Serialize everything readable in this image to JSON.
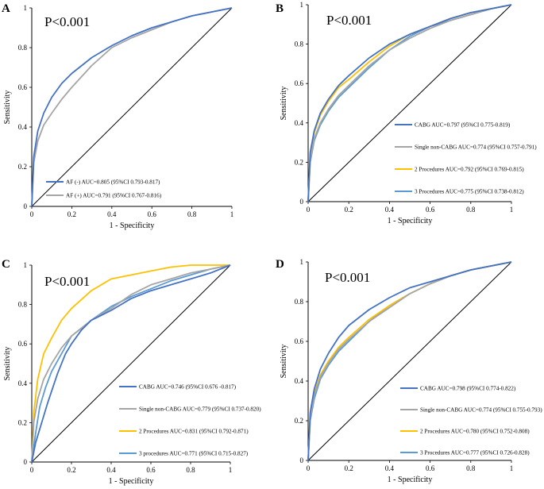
{
  "colors": {
    "blue_dark": "#4472C4",
    "gray": "#A5A5A5",
    "yellow": "#FFC000",
    "blue_light": "#5B9BD5",
    "axis": "#000000"
  },
  "chart_data": [
    {
      "type": "line",
      "panel": "A",
      "title": "P<0.001",
      "xlabel": "1 - Specificity",
      "ylabel": "Sensitivity",
      "xlim": [
        0,
        1
      ],
      "ylim": [
        0,
        1
      ],
      "xticks": [
        "0",
        "0.2",
        "0.4",
        "0.6",
        "0.8",
        "1"
      ],
      "yticks": [
        "0",
        "0.2",
        "0.4",
        "0.6",
        "0.8",
        "1"
      ],
      "reference_line": [
        [
          0,
          0
        ],
        [
          1,
          1
        ]
      ],
      "series": [
        {
          "name": "AF (-) AUC=0.805 (95%CI 0.793-0.817)",
          "color": "#4472C4",
          "x": [
            0,
            0.01,
            0.03,
            0.06,
            0.1,
            0.15,
            0.2,
            0.3,
            0.4,
            0.5,
            0.6,
            0.7,
            0.8,
            0.9,
            1
          ],
          "y": [
            0,
            0.25,
            0.38,
            0.47,
            0.55,
            0.62,
            0.67,
            0.75,
            0.81,
            0.86,
            0.9,
            0.93,
            0.96,
            0.98,
            1
          ]
        },
        {
          "name": "AF (+) AUC=0.791 (95%CI 0.767-0.816)",
          "color": "#A5A5A5",
          "x": [
            0,
            0.01,
            0.03,
            0.06,
            0.1,
            0.15,
            0.2,
            0.3,
            0.4,
            0.5,
            0.6,
            0.7,
            0.8,
            0.9,
            1
          ],
          "y": [
            0,
            0.22,
            0.33,
            0.41,
            0.47,
            0.54,
            0.6,
            0.71,
            0.8,
            0.85,
            0.89,
            0.93,
            0.96,
            0.98,
            1
          ]
        }
      ]
    },
    {
      "type": "line",
      "panel": "B",
      "title": "P<0.001",
      "xlabel": "1 - Specificity",
      "ylabel": "Sensitivity",
      "xlim": [
        0,
        1
      ],
      "ylim": [
        0,
        1
      ],
      "xticks": [
        "0",
        "0.2",
        "0.4",
        "0.6",
        "0.8",
        "1"
      ],
      "yticks": [
        "0",
        "0.2",
        "0.4",
        "0.6",
        "0.8",
        "1"
      ],
      "reference_line": [
        [
          0,
          0
        ],
        [
          1,
          1
        ]
      ],
      "series": [
        {
          "name": "CABG AUC=0.797 (95%CI 0.775-0.819)",
          "color": "#4472C4",
          "x": [
            0,
            0.01,
            0.03,
            0.06,
            0.1,
            0.15,
            0.2,
            0.3,
            0.4,
            0.5,
            0.6,
            0.7,
            0.8,
            0.9,
            1
          ],
          "y": [
            0,
            0.25,
            0.36,
            0.45,
            0.52,
            0.59,
            0.64,
            0.73,
            0.8,
            0.85,
            0.89,
            0.93,
            0.96,
            0.98,
            1
          ]
        },
        {
          "name": "Single non-CABG AUC=0.774 (95%CI 0.757-0.791)",
          "color": "#A5A5A5",
          "x": [
            0,
            0.01,
            0.03,
            0.06,
            0.1,
            0.15,
            0.2,
            0.3,
            0.4,
            0.5,
            0.6,
            0.7,
            0.8,
            0.9,
            1
          ],
          "y": [
            0,
            0.21,
            0.32,
            0.4,
            0.47,
            0.54,
            0.59,
            0.69,
            0.77,
            0.83,
            0.88,
            0.92,
            0.95,
            0.98,
            1
          ]
        },
        {
          "name": "2 Procedures AUC=0.792 (95%CI 0.769-0.815)",
          "color": "#FFC000",
          "x": [
            0,
            0.01,
            0.03,
            0.06,
            0.1,
            0.15,
            0.2,
            0.3,
            0.4,
            0.5,
            0.6,
            0.7,
            0.8,
            0.9,
            1
          ],
          "y": [
            0,
            0.24,
            0.35,
            0.44,
            0.51,
            0.58,
            0.62,
            0.71,
            0.79,
            0.85,
            0.89,
            0.93,
            0.96,
            0.98,
            1
          ]
        },
        {
          "name": "3 Procedures AUC=0.775 (95%CI 0.738-0.812)",
          "color": "#5B9BD5",
          "x": [
            0,
            0.01,
            0.03,
            0.06,
            0.1,
            0.15,
            0.2,
            0.3,
            0.4,
            0.5,
            0.6,
            0.7,
            0.8,
            0.9,
            1
          ],
          "y": [
            0,
            0.2,
            0.31,
            0.39,
            0.46,
            0.53,
            0.58,
            0.68,
            0.77,
            0.84,
            0.89,
            0.92,
            0.95,
            0.98,
            1
          ]
        }
      ]
    },
    {
      "type": "line",
      "panel": "C",
      "title": "P<0.001",
      "xlabel": "1 - Specificity",
      "ylabel": "Sensitivity",
      "xlim": [
        0,
        1
      ],
      "ylim": [
        0,
        1
      ],
      "xticks": [
        "0",
        "0.2",
        "0.4",
        "0.6",
        "0.8",
        "1"
      ],
      "yticks": [
        "0",
        "0.2",
        "0.4",
        "0.6",
        "0.8",
        "1"
      ],
      "reference_line": [
        [
          0,
          0
        ],
        [
          1,
          1
        ]
      ],
      "series": [
        {
          "name": "CABG AUC=0.746 (95%CI 0.676 -0.817)",
          "color": "#4472C4",
          "x": [
            0,
            0.02,
            0.05,
            0.08,
            0.1,
            0.13,
            0.17,
            0.2,
            0.25,
            0.3,
            0.4,
            0.5,
            0.6,
            0.7,
            0.8,
            0.9,
            1
          ],
          "y": [
            0,
            0.1,
            0.2,
            0.3,
            0.36,
            0.45,
            0.55,
            0.6,
            0.67,
            0.72,
            0.77,
            0.83,
            0.87,
            0.9,
            0.93,
            0.96,
            1
          ]
        },
        {
          "name": "Single non-CABG AUC=0.779 (95%CI 0.737-0.820)",
          "color": "#A5A5A5",
          "x": [
            0,
            0.01,
            0.03,
            0.06,
            0.1,
            0.15,
            0.2,
            0.3,
            0.4,
            0.5,
            0.6,
            0.7,
            0.8,
            0.9,
            1
          ],
          "y": [
            0,
            0.2,
            0.32,
            0.42,
            0.5,
            0.58,
            0.64,
            0.72,
            0.78,
            0.85,
            0.9,
            0.93,
            0.96,
            0.98,
            1
          ]
        },
        {
          "name": "2 Procedures AUC=0.831 (95%CI 0.792-0.871)",
          "color": "#FFC000",
          "x": [
            0,
            0.01,
            0.03,
            0.06,
            0.1,
            0.15,
            0.2,
            0.3,
            0.4,
            0.5,
            0.6,
            0.7,
            0.8,
            0.9,
            1
          ],
          "y": [
            0,
            0.25,
            0.42,
            0.55,
            0.63,
            0.72,
            0.78,
            0.87,
            0.93,
            0.95,
            0.97,
            0.99,
            1,
            1,
            1
          ]
        },
        {
          "name": "3 procedures AUC=0.771 (95%CI 0.715-0.827)",
          "color": "#5B9BD5",
          "x": [
            0,
            0.02,
            0.04,
            0.07,
            0.1,
            0.15,
            0.2,
            0.3,
            0.4,
            0.5,
            0.6,
            0.7,
            0.8,
            0.9,
            1
          ],
          "y": [
            0,
            0.15,
            0.28,
            0.38,
            0.46,
            0.55,
            0.64,
            0.72,
            0.79,
            0.84,
            0.88,
            0.92,
            0.95,
            0.98,
            1
          ]
        }
      ]
    },
    {
      "type": "line",
      "panel": "D",
      "title": "P<0.001",
      "xlabel": "1 - Specificity",
      "ylabel": "Sensitivity",
      "xlim": [
        0,
        1
      ],
      "ylim": [
        0,
        1
      ],
      "xticks": [
        "0",
        "0.2",
        "0.4",
        "0.6",
        "0.8",
        "1"
      ],
      "yticks": [
        "0",
        "0.2",
        "0.4",
        "0.6",
        "0.8",
        "1"
      ],
      "reference_line": [
        [
          0,
          0
        ],
        [
          1,
          1
        ]
      ],
      "series": [
        {
          "name": "CABG AUC=0.798 (95%CI 0.774-0.822)",
          "color": "#4472C4",
          "x": [
            0,
            0.01,
            0.03,
            0.06,
            0.1,
            0.15,
            0.2,
            0.3,
            0.4,
            0.5,
            0.6,
            0.7,
            0.8,
            0.9,
            1
          ],
          "y": [
            0,
            0.24,
            0.36,
            0.46,
            0.54,
            0.62,
            0.68,
            0.76,
            0.82,
            0.87,
            0.9,
            0.93,
            0.96,
            0.98,
            1
          ]
        },
        {
          "name": "Single non-CABG AUC=0.774 (95%CI 0.755-0.793)",
          "color": "#A5A5A5",
          "x": [
            0,
            0.01,
            0.03,
            0.06,
            0.1,
            0.15,
            0.2,
            0.3,
            0.4,
            0.5,
            0.6,
            0.7,
            0.8,
            0.9,
            1
          ],
          "y": [
            0,
            0.21,
            0.33,
            0.42,
            0.49,
            0.56,
            0.61,
            0.7,
            0.77,
            0.84,
            0.89,
            0.93,
            0.96,
            0.98,
            1
          ]
        },
        {
          "name": "2 Procedures AUC=0.780 (95%CI 0.752-0.808)",
          "color": "#FFC000",
          "x": [
            0,
            0.01,
            0.03,
            0.06,
            0.1,
            0.15,
            0.2,
            0.3,
            0.4,
            0.5,
            0.6,
            0.7,
            0.8,
            0.9,
            1
          ],
          "y": [
            0,
            0.22,
            0.34,
            0.43,
            0.5,
            0.57,
            0.62,
            0.71,
            0.78,
            0.84,
            0.89,
            0.93,
            0.96,
            0.98,
            1
          ]
        },
        {
          "name": "3 Procedures AUC=0.777 (95%CI 0.726-0.828)",
          "color": "#5B9BD5",
          "x": [
            0,
            0.01,
            0.03,
            0.06,
            0.1,
            0.15,
            0.2,
            0.3,
            0.4,
            0.5,
            0.6,
            0.7,
            0.8,
            0.9,
            1
          ],
          "y": [
            0,
            0.2,
            0.31,
            0.41,
            0.48,
            0.55,
            0.6,
            0.7,
            0.78,
            0.84,
            0.89,
            0.93,
            0.96,
            0.98,
            1
          ]
        }
      ]
    }
  ]
}
